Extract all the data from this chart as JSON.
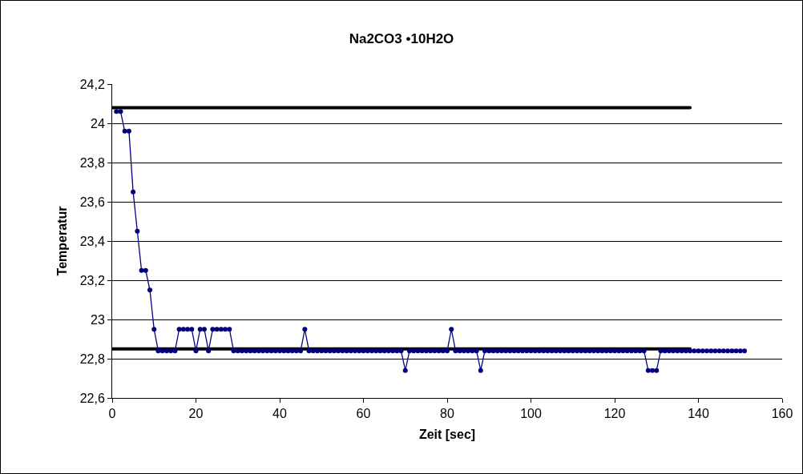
{
  "chart_data": {
    "type": "line",
    "title": "Na2CO3 •10H2O",
    "xlabel": "Zeit [sec]",
    "ylabel": "Temperatur",
    "xlim": [
      0,
      160
    ],
    "xticks": [
      0,
      20,
      40,
      60,
      80,
      100,
      120,
      140,
      160
    ],
    "ylim": [
      22.6,
      24.2
    ],
    "yticks": [
      {
        "value": 22.6,
        "label": "22,6"
      },
      {
        "value": 22.8,
        "label": "22,8"
      },
      23,
      {
        "value": 23.2,
        "label": "23,2"
      },
      {
        "value": 23.4,
        "label": "23,4"
      },
      {
        "value": 23.6,
        "label": "23,6"
      },
      {
        "value": 23.8,
        "label": "23,8"
      },
      24,
      {
        "value": 24.2,
        "label": "24,2"
      }
    ],
    "grid": "y",
    "marker": "circle",
    "line_style": "solid",
    "series": [
      {
        "color": "#000000",
        "marker": "none",
        "x": [
          0,
          138
        ],
        "values": [
          24.08,
          24.08
        ]
      },
      {
        "color": "#000000",
        "marker": "none",
        "x": [
          0,
          138
        ],
        "values": [
          22.85,
          22.85
        ]
      },
      {
        "color": "#000080",
        "x": [
          1,
          2,
          3,
          4,
          5,
          6,
          7,
          8,
          9,
          10,
          11,
          12,
          13,
          14,
          15,
          16,
          17,
          18,
          19,
          20,
          21,
          22,
          23,
          24,
          25,
          26,
          27,
          28,
          29,
          30,
          31,
          32,
          33,
          34,
          35,
          36,
          37,
          38,
          39,
          40,
          41,
          42,
          43,
          44,
          45,
          46,
          47,
          48,
          49,
          50,
          51,
          52,
          53,
          54,
          55,
          56,
          57,
          58,
          59,
          60,
          61,
          62,
          63,
          64,
          65,
          66,
          67,
          68,
          69,
          70,
          71,
          72,
          73,
          74,
          75,
          76,
          77,
          78,
          79,
          80,
          81,
          82,
          83,
          84,
          85,
          86,
          87,
          88,
          89,
          90,
          91,
          92,
          93,
          94,
          95,
          96,
          97,
          98,
          99,
          100,
          101,
          102,
          103,
          104,
          105,
          106,
          107,
          108,
          109,
          110,
          111,
          112,
          113,
          114,
          115,
          116,
          117,
          118,
          119,
          120,
          121,
          122,
          123,
          124,
          125,
          126,
          127,
          128,
          129,
          130,
          131,
          132,
          133,
          134,
          135,
          136,
          137,
          138,
          139,
          140,
          141,
          142,
          143,
          144,
          145,
          146,
          147,
          148,
          149,
          150,
          151
        ],
        "values": [
          24.06,
          24.06,
          23.96,
          23.96,
          23.65,
          23.45,
          23.25,
          23.25,
          23.15,
          22.95,
          22.84,
          22.84,
          22.84,
          22.84,
          22.84,
          22.95,
          22.95,
          22.95,
          22.95,
          22.84,
          22.95,
          22.95,
          22.84,
          22.95,
          22.95,
          22.95,
          22.95,
          22.95,
          22.84,
          22.84,
          22.84,
          22.84,
          22.84,
          22.84,
          22.84,
          22.84,
          22.84,
          22.84,
          22.84,
          22.84,
          22.84,
          22.84,
          22.84,
          22.84,
          22.84,
          22.95,
          22.84,
          22.84,
          22.84,
          22.84,
          22.84,
          22.84,
          22.84,
          22.84,
          22.84,
          22.84,
          22.84,
          22.84,
          22.84,
          22.84,
          22.84,
          22.84,
          22.84,
          22.84,
          22.84,
          22.84,
          22.84,
          22.84,
          22.84,
          22.74,
          22.84,
          22.84,
          22.84,
          22.84,
          22.84,
          22.84,
          22.84,
          22.84,
          22.84,
          22.84,
          22.95,
          22.84,
          22.84,
          22.84,
          22.84,
          22.84,
          22.84,
          22.74,
          22.84,
          22.84,
          22.84,
          22.84,
          22.84,
          22.84,
          22.84,
          22.84,
          22.84,
          22.84,
          22.84,
          22.84,
          22.84,
          22.84,
          22.84,
          22.84,
          22.84,
          22.84,
          22.84,
          22.84,
          22.84,
          22.84,
          22.84,
          22.84,
          22.84,
          22.84,
          22.84,
          22.84,
          22.84,
          22.84,
          22.84,
          22.84,
          22.84,
          22.84,
          22.84,
          22.84,
          22.84,
          22.84,
          22.84,
          22.74,
          22.74,
          22.74,
          22.84,
          22.84,
          22.84,
          22.84,
          22.84,
          22.84,
          22.84,
          22.84,
          22.84,
          22.84,
          22.84,
          22.84,
          22.84,
          22.84,
          22.84,
          22.84,
          22.84,
          22.84,
          22.84,
          22.84,
          22.84
        ]
      }
    ]
  }
}
